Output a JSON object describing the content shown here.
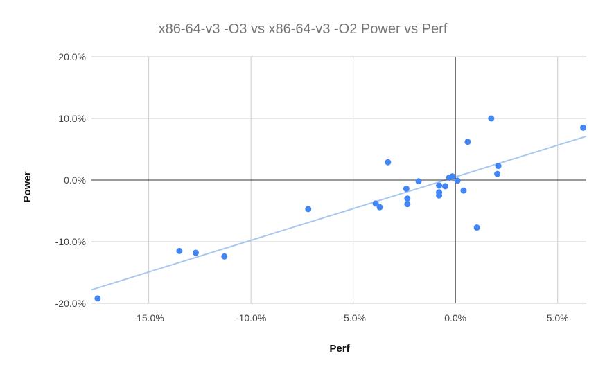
{
  "chart_data": {
    "type": "scatter",
    "title": "x86-64-v3 -O3 vs x86-64-v3 -O2 Power vs Perf",
    "xlabel": "Perf",
    "ylabel": "Power",
    "xlim": [
      -17.8,
      6.4
    ],
    "ylim": [
      -20,
      20
    ],
    "x_ticks": [
      -15,
      -10,
      -5,
      0,
      5
    ],
    "x_tick_labels": [
      "-15.0%",
      "-10.0%",
      "-5.0%",
      "0.0%",
      "5.0%"
    ],
    "y_ticks": [
      20,
      10,
      0,
      -10,
      -20
    ],
    "y_tick_labels": [
      "20.0%",
      "10.0%",
      "0.0%",
      "-10.0%",
      "-20.0%"
    ],
    "grid": true,
    "legend": "none",
    "point_color": "#4285f4",
    "trendline_color": "#a8c7f0",
    "trendline": {
      "x": [
        -17.8,
        6.4
      ],
      "y": [
        -17.8,
        7.1
      ]
    },
    "points": [
      {
        "x": -17.5,
        "y": -19.2
      },
      {
        "x": -13.5,
        "y": -11.5
      },
      {
        "x": -12.7,
        "y": -11.8
      },
      {
        "x": -11.3,
        "y": -12.4
      },
      {
        "x": -7.2,
        "y": -4.7
      },
      {
        "x": -3.9,
        "y": -3.8
      },
      {
        "x": -3.7,
        "y": -4.4
      },
      {
        "x": -3.3,
        "y": 2.9
      },
      {
        "x": -2.4,
        "y": -1.4
      },
      {
        "x": -2.35,
        "y": -3.0
      },
      {
        "x": -2.35,
        "y": -3.9
      },
      {
        "x": -1.8,
        "y": -0.2
      },
      {
        "x": -0.8,
        "y": -0.9
      },
      {
        "x": -0.8,
        "y": -2.0
      },
      {
        "x": -0.8,
        "y": -2.5
      },
      {
        "x": -0.5,
        "y": -1.0
      },
      {
        "x": -0.3,
        "y": 0.4
      },
      {
        "x": -0.15,
        "y": 0.6
      },
      {
        "x": 0.1,
        "y": -0.1
      },
      {
        "x": 0.4,
        "y": -1.7
      },
      {
        "x": 0.6,
        "y": 6.2
      },
      {
        "x": 1.05,
        "y": -7.7
      },
      {
        "x": 1.75,
        "y": 10.0
      },
      {
        "x": 2.05,
        "y": 1.0
      },
      {
        "x": 2.1,
        "y": 2.3
      },
      {
        "x": 6.25,
        "y": 8.5
      }
    ]
  }
}
